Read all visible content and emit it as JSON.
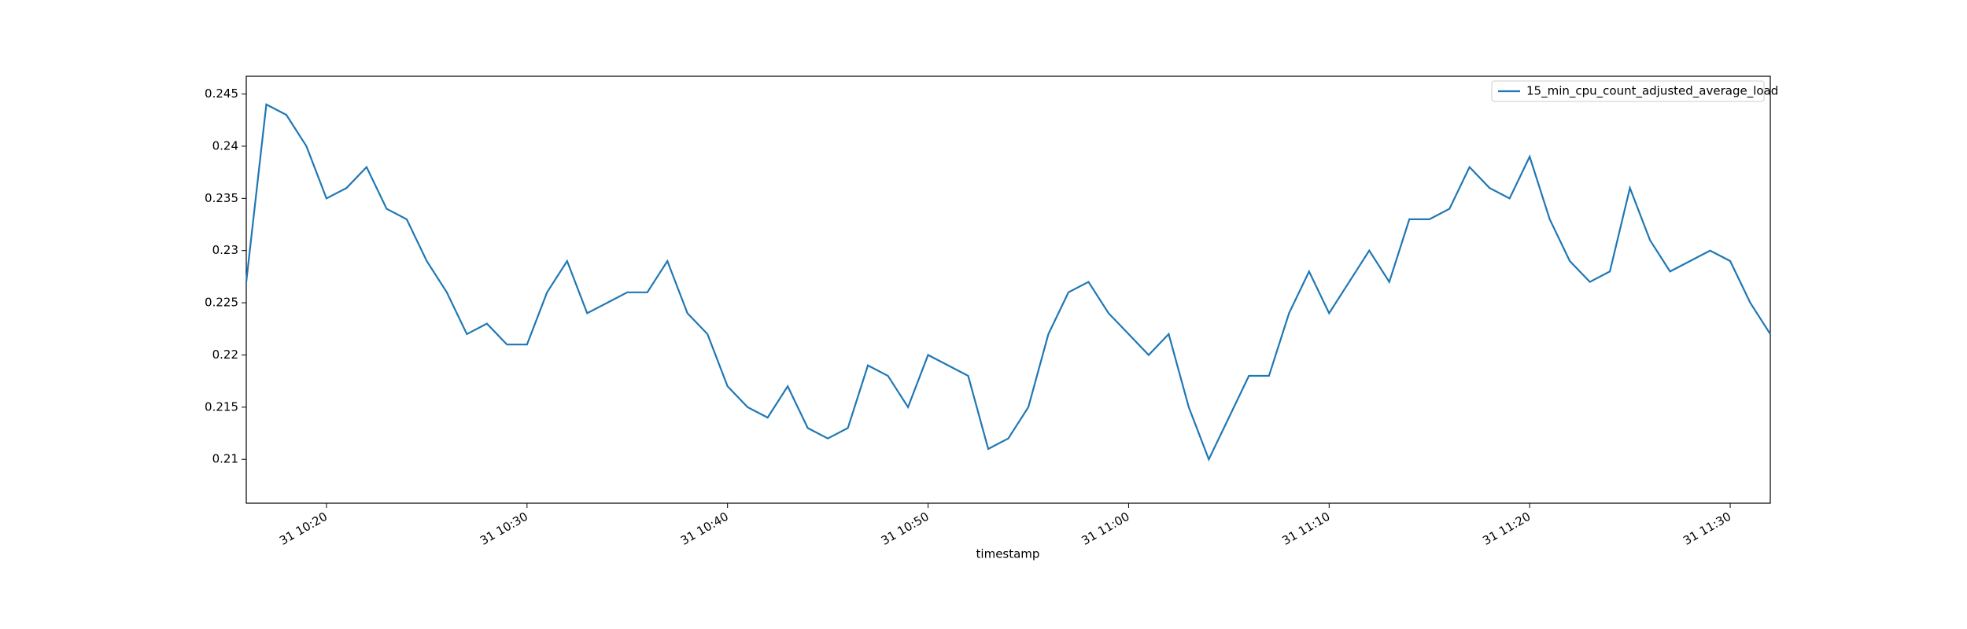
{
  "chart_data": {
    "type": "line",
    "xlabel": "timestamp",
    "x": [
      "31 10:16",
      "31 10:17",
      "31 10:18",
      "31 10:19",
      "31 10:20",
      "31 10:21",
      "31 10:22",
      "31 10:23",
      "31 10:24",
      "31 10:25",
      "31 10:26",
      "31 10:27",
      "31 10:28",
      "31 10:29",
      "31 10:30",
      "31 10:31",
      "31 10:32",
      "31 10:33",
      "31 10:34",
      "31 10:35",
      "31 10:36",
      "31 10:37",
      "31 10:38",
      "31 10:39",
      "31 10:40",
      "31 10:41",
      "31 10:42",
      "31 10:43",
      "31 10:44",
      "31 10:45",
      "31 10:46",
      "31 10:47",
      "31 10:48",
      "31 10:49",
      "31 10:50",
      "31 10:51",
      "31 10:52",
      "31 10:53",
      "31 10:54",
      "31 10:55",
      "31 10:56",
      "31 10:57",
      "31 10:58",
      "31 10:59",
      "31 11:00",
      "31 11:01",
      "31 11:02",
      "31 11:03",
      "31 11:04",
      "31 11:05",
      "31 11:06",
      "31 11:07",
      "31 11:08",
      "31 11:09",
      "31 11:10",
      "31 11:11",
      "31 11:12",
      "31 11:13",
      "31 11:14",
      "31 11:15",
      "31 11:16",
      "31 11:17",
      "31 11:18",
      "31 11:19",
      "31 11:20",
      "31 11:21",
      "31 11:22",
      "31 11:23",
      "31 11:24",
      "31 11:25",
      "31 11:26",
      "31 11:27",
      "31 11:28",
      "31 11:29",
      "31 11:30",
      "31 11:31",
      "31 11:32"
    ],
    "series": [
      {
        "name": "15_min_cpu_count_adjusted_average_load",
        "color": "#1f77b4",
        "values": [
          0.227,
          0.244,
          0.243,
          0.24,
          0.235,
          0.236,
          0.238,
          0.234,
          0.233,
          0.229,
          0.226,
          0.222,
          0.223,
          0.221,
          0.221,
          0.226,
          0.229,
          0.224,
          0.225,
          0.226,
          0.226,
          0.229,
          0.224,
          0.222,
          0.217,
          0.215,
          0.214,
          0.217,
          0.213,
          0.212,
          0.213,
          0.219,
          0.218,
          0.215,
          0.22,
          0.219,
          0.218,
          0.211,
          0.212,
          0.215,
          0.222,
          0.226,
          0.227,
          0.224,
          0.222,
          0.22,
          0.222,
          0.215,
          0.21,
          0.214,
          0.218,
          0.218,
          0.224,
          0.228,
          0.224,
          0.227,
          0.23,
          0.227,
          0.233,
          0.233,
          0.234,
          0.238,
          0.236,
          0.235,
          0.239,
          0.233,
          0.229,
          0.227,
          0.228,
          0.236,
          0.231,
          0.228,
          0.229,
          0.23,
          0.229,
          0.225,
          0.222
        ]
      }
    ],
    "xlim": [
      "31 10:16",
      "31 11:32"
    ],
    "xticks": [
      "31 10:20",
      "31 10:30",
      "31 10:40",
      "31 10:50",
      "31 11:00",
      "31 11:10",
      "31 11:20",
      "31 11:30"
    ],
    "ylim": [
      0.2058,
      0.2467
    ],
    "yticks": [
      0.21,
      0.215,
      0.22,
      0.225,
      0.23,
      0.235,
      0.24,
      0.245
    ],
    "legend": "upper right"
  }
}
